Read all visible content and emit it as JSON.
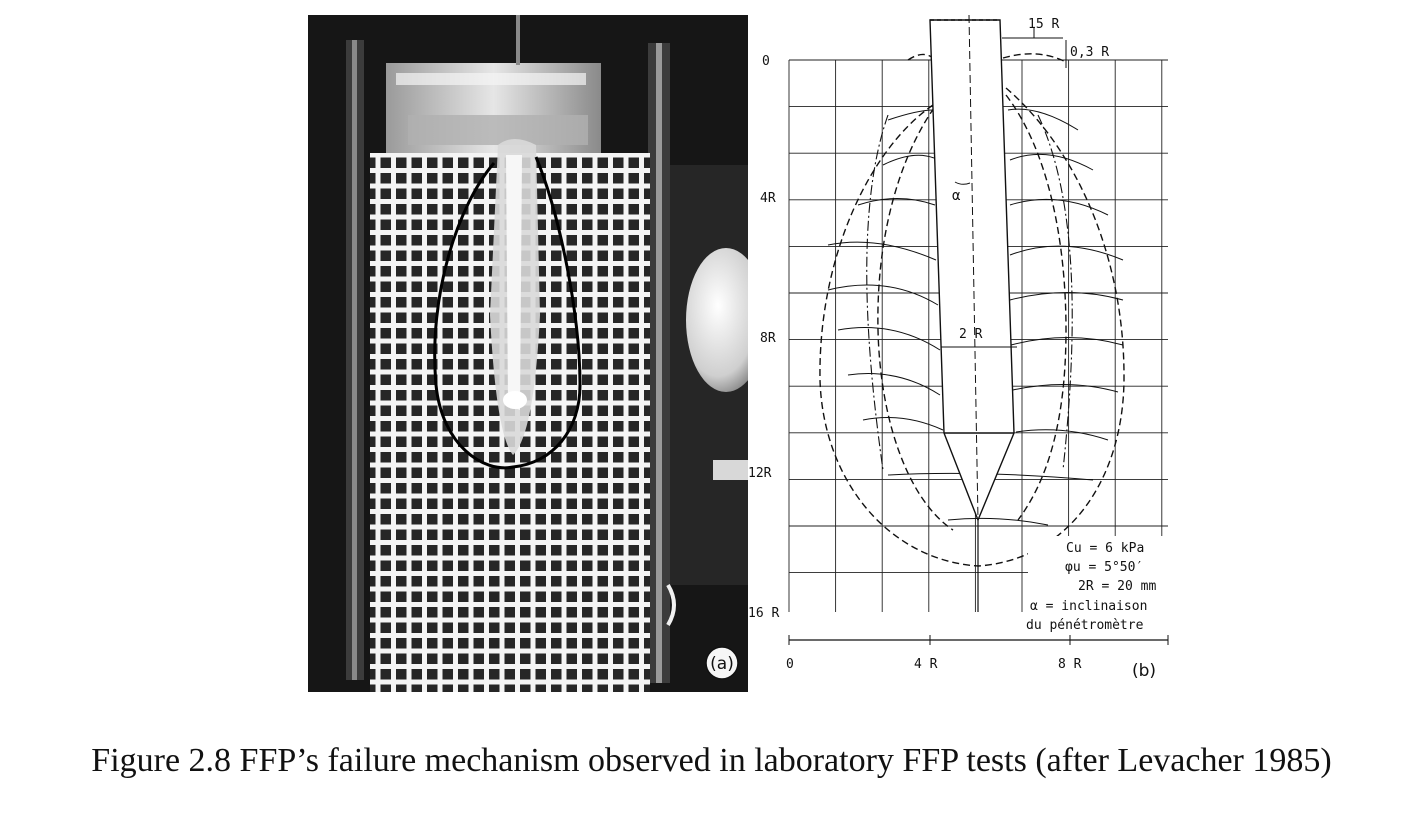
{
  "figure": {
    "caption": "Figure 2.8 FFP’s failure mechanism observed in laboratory FFP tests (after Levacher 1985)",
    "panel_a": {
      "label": "(a)"
    },
    "panel_b": {
      "label": "(b)",
      "y_axis_ticks": [
        "0",
        "4R",
        "8R",
        "12R",
        "16 R"
      ],
      "x_axis_ticks": [
        "0",
        "4 R",
        "8 R"
      ],
      "annotations": {
        "top_dimension": "15 R",
        "offset_dimension": "0,3 R",
        "angle_symbol": "α",
        "diameter": "2 R"
      },
      "legend": {
        "cu": "Cu = 6 kPa",
        "phi": "φu = 5°50′",
        "diameter": "2R = 20 mm",
        "alpha_line1": "α = inclinaison",
        "alpha_line2": "du pénétromètre"
      }
    }
  }
}
